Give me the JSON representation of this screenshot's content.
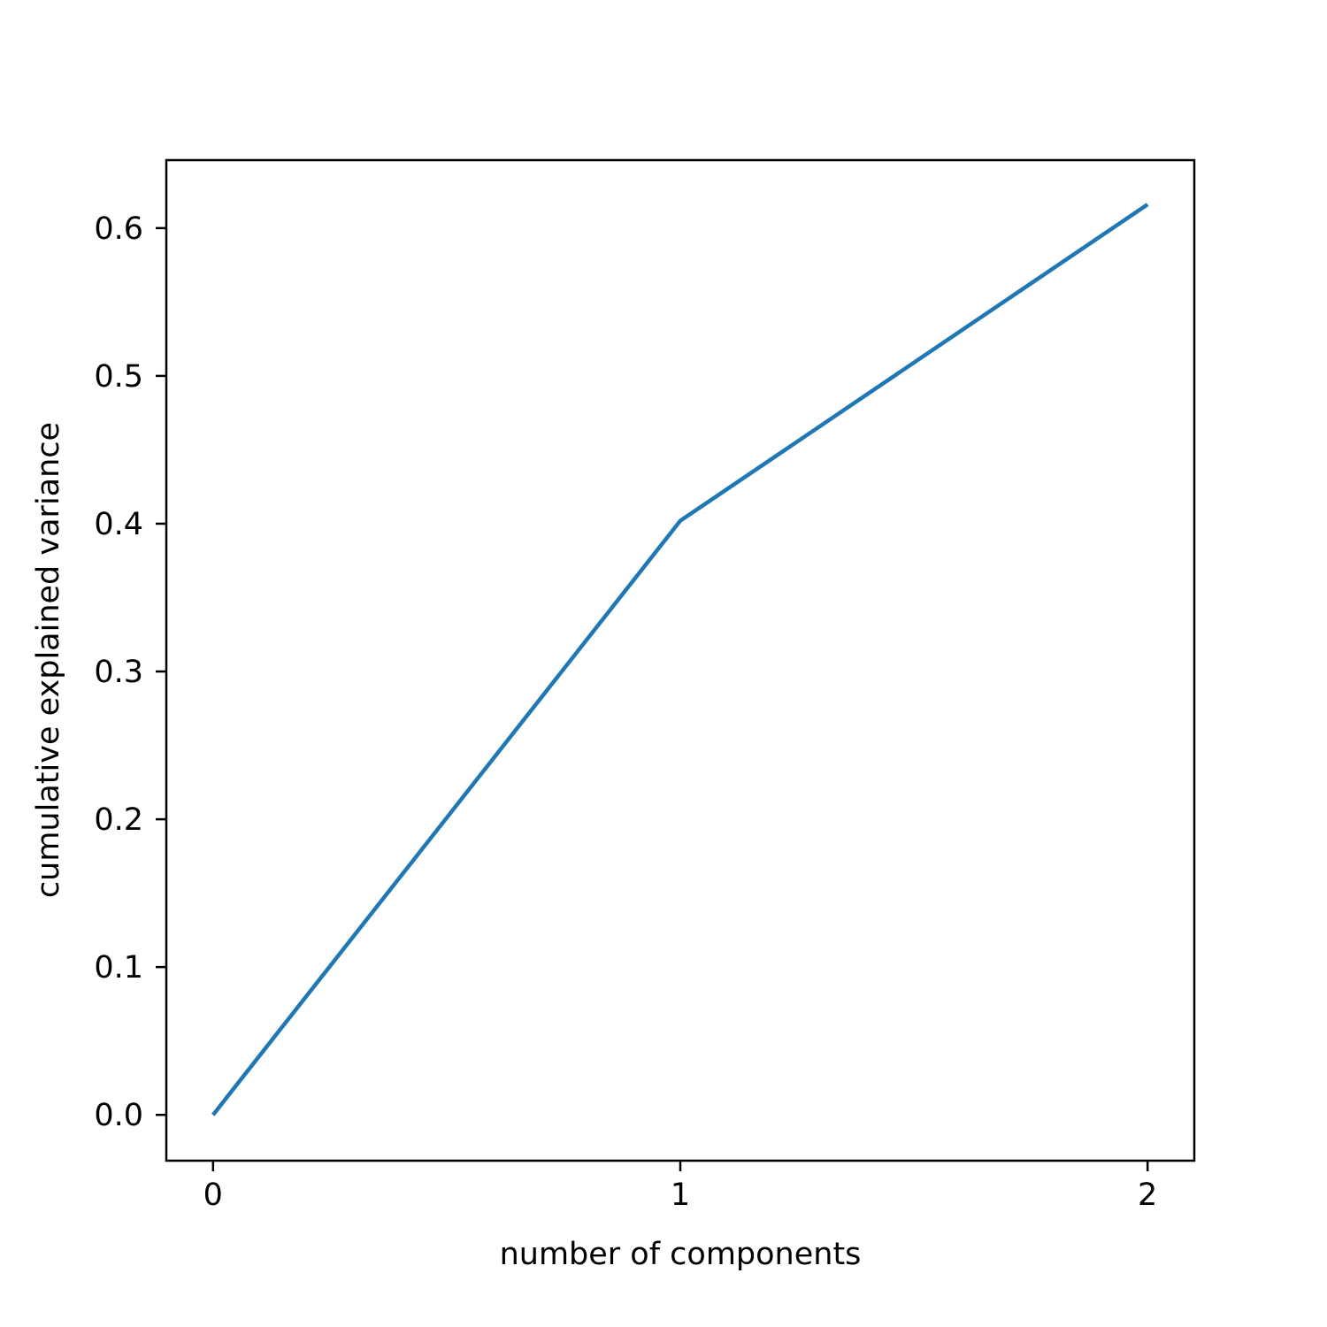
{
  "chart_data": {
    "type": "line",
    "title": "",
    "xlabel": "number of components",
    "ylabel": "cumulative explained variance",
    "xlim": [
      -0.1,
      2.1
    ],
    "ylim": [
      -0.031,
      0.646
    ],
    "xticks": [
      0,
      1,
      2
    ],
    "xtick_labels": [
      "0",
      "1",
      "2"
    ],
    "yticks": [
      0.0,
      0.1,
      0.2,
      0.3,
      0.4,
      0.5,
      0.6
    ],
    "ytick_labels": [
      "0.0",
      "0.1",
      "0.2",
      "0.3",
      "0.4",
      "0.5",
      "0.6"
    ],
    "grid": false,
    "legend": "none",
    "series": [
      {
        "x": [
          0,
          1,
          2
        ],
        "y": [
          0.0,
          0.402,
          0.616
        ],
        "color": "#1f77b4"
      }
    ]
  }
}
